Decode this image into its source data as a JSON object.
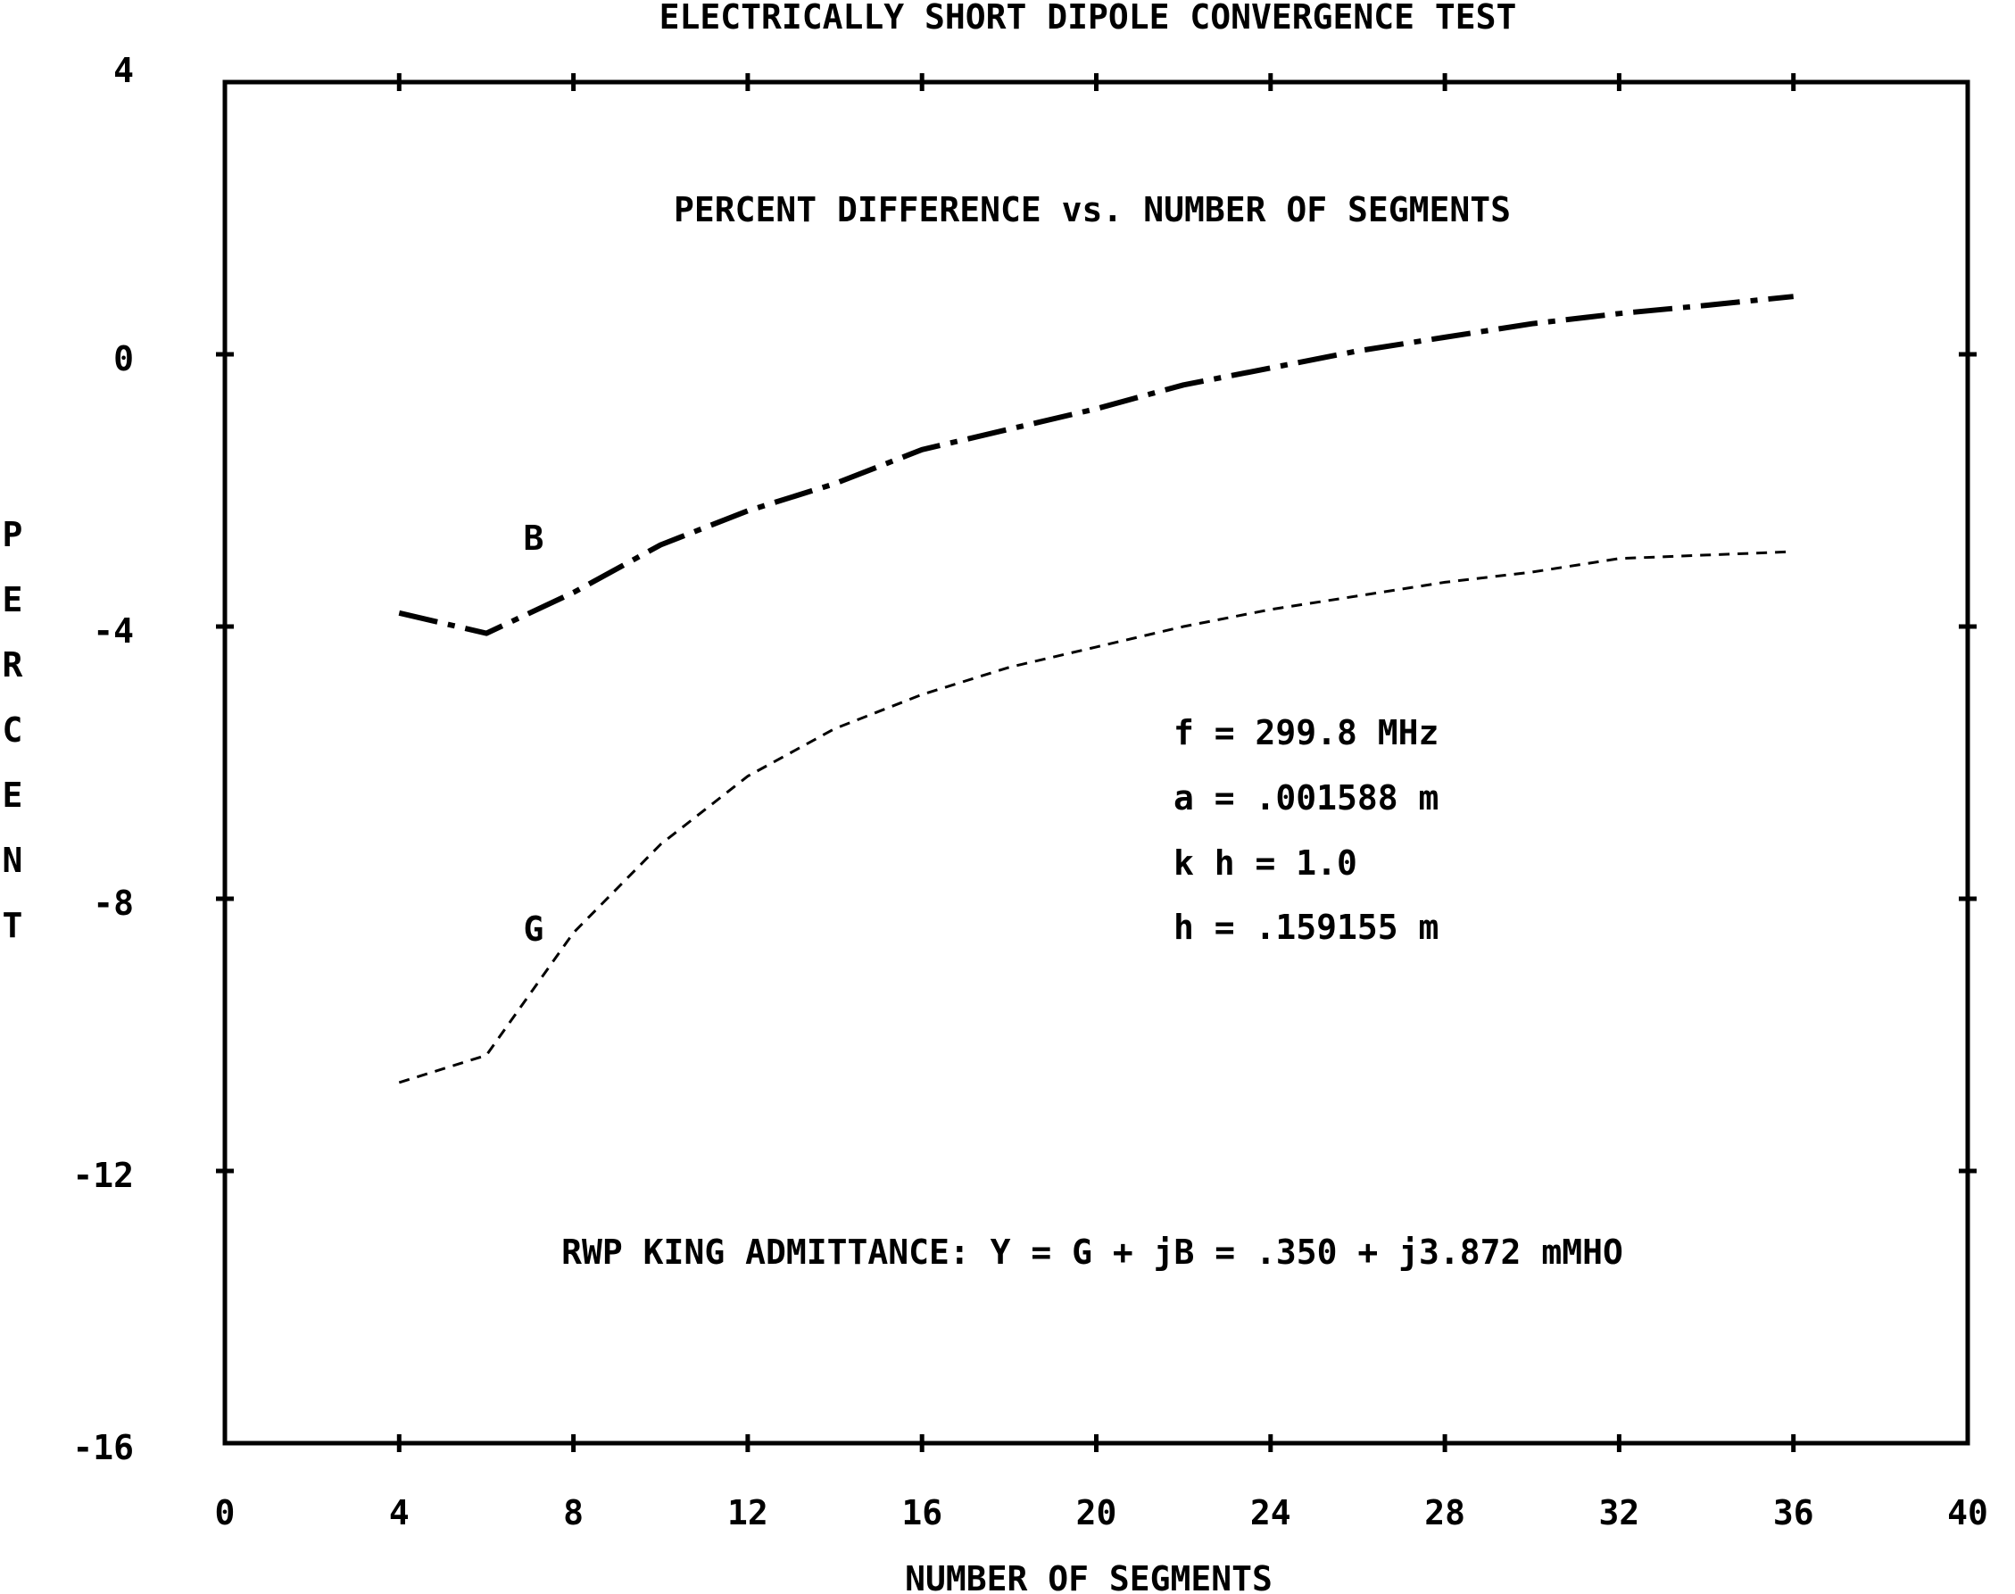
{
  "chart_data": {
    "type": "line",
    "title": "ELECTRICALLY SHORT DIPOLE CONVERGENCE TEST",
    "subtitle": "PERCENT DIFFERENCE vs. NUMBER OF SEGMENTS",
    "xlabel": "NUMBER OF SEGMENTS",
    "ylabel": "PERCENT",
    "xlim": [
      0,
      40
    ],
    "ylim": [
      -16,
      4
    ],
    "x_ticks": [
      0,
      4,
      8,
      12,
      16,
      20,
      24,
      28,
      32,
      36,
      40
    ],
    "y_ticks": [
      4,
      0,
      -4,
      -8,
      -12,
      -16
    ],
    "x_tick_labels": [
      "0",
      "4",
      "8",
      "12",
      "16",
      "20",
      "24",
      "28",
      "32",
      "36",
      "40"
    ],
    "y_tick_labels": [
      "4",
      "0",
      "-4",
      "-8",
      "-12",
      "-16"
    ],
    "grid": false,
    "series": [
      {
        "name": "B",
        "style": "dash-dot",
        "x": [
          4,
          6,
          8,
          10,
          12,
          14,
          16,
          18,
          20,
          22,
          24,
          26,
          28,
          30,
          32,
          34,
          36
        ],
        "values": [
          -3.8,
          -4.1,
          -3.5,
          -2.8,
          -2.3,
          -1.9,
          -1.4,
          -1.1,
          -0.8,
          -0.45,
          -0.2,
          0.05,
          0.25,
          0.45,
          0.6,
          0.72,
          0.85
        ]
      },
      {
        "name": "G",
        "style": "dotted",
        "x": [
          4,
          6,
          8,
          10,
          12,
          14,
          16,
          18,
          20,
          22,
          24,
          26,
          28,
          30,
          32,
          34,
          36
        ],
        "values": [
          -10.7,
          -10.3,
          -8.5,
          -7.2,
          -6.2,
          -5.5,
          -5.0,
          -4.6,
          -4.3,
          -4.0,
          -3.75,
          -3.55,
          -3.35,
          -3.2,
          -3.0,
          -2.95,
          -2.9
        ]
      }
    ],
    "annotations": {
      "params": [
        "f = 299.8 MHz",
        "a = .001588 m",
        "k h = 1.0",
        "h = .159155 m"
      ],
      "admittance": "RWP KING ADMITTANCE: Y = G + jB = .350 + j3.872 mMHO"
    }
  }
}
